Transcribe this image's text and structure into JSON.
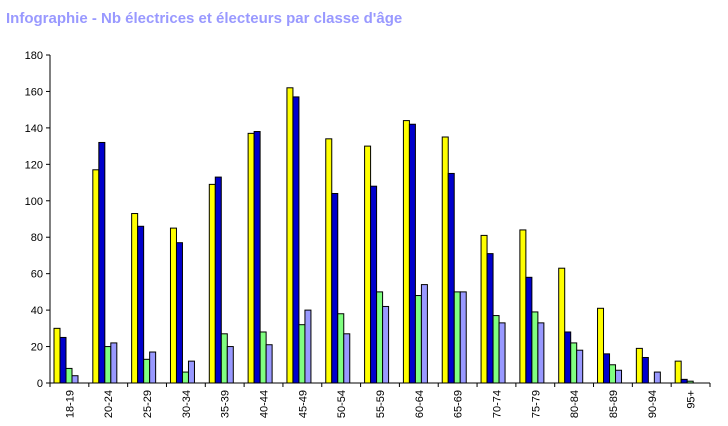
{
  "title": "Infographie - Nb électrices et électeurs par classe d'âge",
  "chart_data": {
    "type": "bar",
    "title": "Infographie - Nb électrices et électeurs par classe d'âge",
    "xlabel": "",
    "ylabel": "",
    "ylim": [
      0,
      180
    ],
    "yticks": [
      "0",
      "20",
      "40",
      "60",
      "80",
      "100",
      "120",
      "140",
      "160",
      "180"
    ],
    "grid": false,
    "legend": "none",
    "categories": [
      "18-19",
      "20-24",
      "25-29",
      "30-34",
      "35-39",
      "40-44",
      "45-49",
      "50-54",
      "55-59",
      "60-64",
      "65-69",
      "70-74",
      "75-79",
      "80-84",
      "85-89",
      "90-94",
      "95+"
    ],
    "series": [
      {
        "color": "#ffff00",
        "values": [
          30,
          117,
          93,
          85,
          109,
          137,
          162,
          134,
          130,
          144,
          135,
          81,
          84,
          63,
          41,
          19,
          12
        ]
      },
      {
        "color": "#0000cc",
        "values": [
          25,
          132,
          86,
          77,
          113,
          138,
          157,
          104,
          108,
          142,
          115,
          71,
          58,
          28,
          16,
          14,
          2
        ]
      },
      {
        "color": "#80ff80",
        "values": [
          8,
          20,
          13,
          6,
          27,
          28,
          32,
          38,
          50,
          48,
          50,
          37,
          39,
          22,
          10,
          0,
          1
        ]
      },
      {
        "color": "#9999ff",
        "values": [
          4,
          22,
          17,
          12,
          20,
          21,
          40,
          27,
          42,
          54,
          50,
          33,
          33,
          18,
          7,
          6,
          0
        ]
      }
    ]
  }
}
